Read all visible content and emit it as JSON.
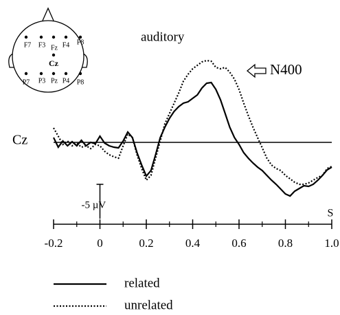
{
  "chart_data": {
    "type": "line",
    "title": "auditory",
    "channel_label": "Cz",
    "annotation": "N400",
    "xlabel": "S",
    "electrodes": [
      "F7",
      "F3",
      "Fz",
      "F4",
      "F8",
      "Cz",
      "P7",
      "P3",
      "Pz",
      "P4",
      "P8"
    ],
    "x": [
      -0.2,
      -0.18,
      -0.16,
      -0.14,
      -0.12,
      -0.1,
      -0.08,
      -0.06,
      -0.04,
      -0.02,
      0,
      0.02,
      0.04,
      0.06,
      0.08,
      0.1,
      0.12,
      0.14,
      0.16,
      0.18,
      0.2,
      0.22,
      0.24,
      0.26,
      0.28,
      0.3,
      0.32,
      0.34,
      0.36,
      0.38,
      0.4,
      0.42,
      0.44,
      0.46,
      0.48,
      0.5,
      0.52,
      0.54,
      0.56,
      0.58,
      0.6,
      0.62,
      0.64,
      0.66,
      0.68,
      0.7,
      0.72,
      0.74,
      0.76,
      0.78,
      0.8,
      0.82,
      0.84,
      0.86,
      0.88,
      0.9,
      0.92,
      0.94,
      0.96,
      0.98,
      1.0
    ],
    "series": [
      {
        "name": "related",
        "color": "#000000",
        "dash": "solid",
        "values": [
          -0.7,
          0.7,
          -0.2,
          0.5,
          -0.1,
          0.5,
          -0.3,
          0.5,
          0,
          0.2,
          -0.9,
          0.1,
          0.5,
          0.7,
          0.8,
          -0.2,
          -1.5,
          -0.7,
          1.5,
          3.3,
          4.9,
          4.1,
          1.8,
          -0.7,
          -2.2,
          -3.5,
          -4.5,
          -5.2,
          -5.7,
          -5.9,
          -6.4,
          -6.9,
          -7.9,
          -8.6,
          -8.7,
          -7.7,
          -6.2,
          -4.2,
          -2.2,
          -0.7,
          0.3,
          1.5,
          2.3,
          3.0,
          3.6,
          4.1,
          4.8,
          5.5,
          6.1,
          6.8,
          7.5,
          7.8,
          7.1,
          6.7,
          6.3,
          6.4,
          6.1,
          5.5,
          4.8,
          4.0,
          3.6
        ]
      },
      {
        "name": "unrelated",
        "color": "#000000",
        "dash": "dotted",
        "values": [
          -2.1,
          -0.9,
          0.3,
          -0.2,
          0.5,
          0.1,
          0.7,
          0.5,
          0.9,
          0.3,
          0.5,
          1.3,
          1.8,
          2.1,
          2.3,
          0.5,
          -1.2,
          -0.7,
          1.8,
          3.8,
          5.5,
          4.8,
          2.3,
          -0.2,
          -2.7,
          -4.2,
          -5.7,
          -7.2,
          -8.9,
          -9.9,
          -10.7,
          -11.2,
          -11.7,
          -11.9,
          -11.8,
          -10.9,
          -10.7,
          -10.9,
          -10.2,
          -9.2,
          -7.7,
          -5.7,
          -3.9,
          -2.2,
          -0.7,
          0.8,
          2.3,
          3.3,
          3.8,
          4.1,
          4.8,
          5.3,
          5.8,
          6.1,
          6.1,
          5.9,
          5.5,
          5.1,
          4.8,
          3.8,
          3.5
        ]
      }
    ],
    "xlim": [
      -0.2,
      1.0
    ],
    "xticks": [
      -0.2,
      0,
      0.2,
      0.4,
      0.6,
      0.8,
      {
        "value": 1.0,
        "label": "1.0"
      }
    ],
    "xticks_minor": [
      -0.1,
      0.1,
      0.3,
      0.5,
      0.7,
      0.9
    ],
    "ylim": [
      -13,
      9
    ],
    "invert_y": true,
    "scale_bar": {
      "value": -5,
      "label": "-5 µV"
    },
    "grid": false
  }
}
